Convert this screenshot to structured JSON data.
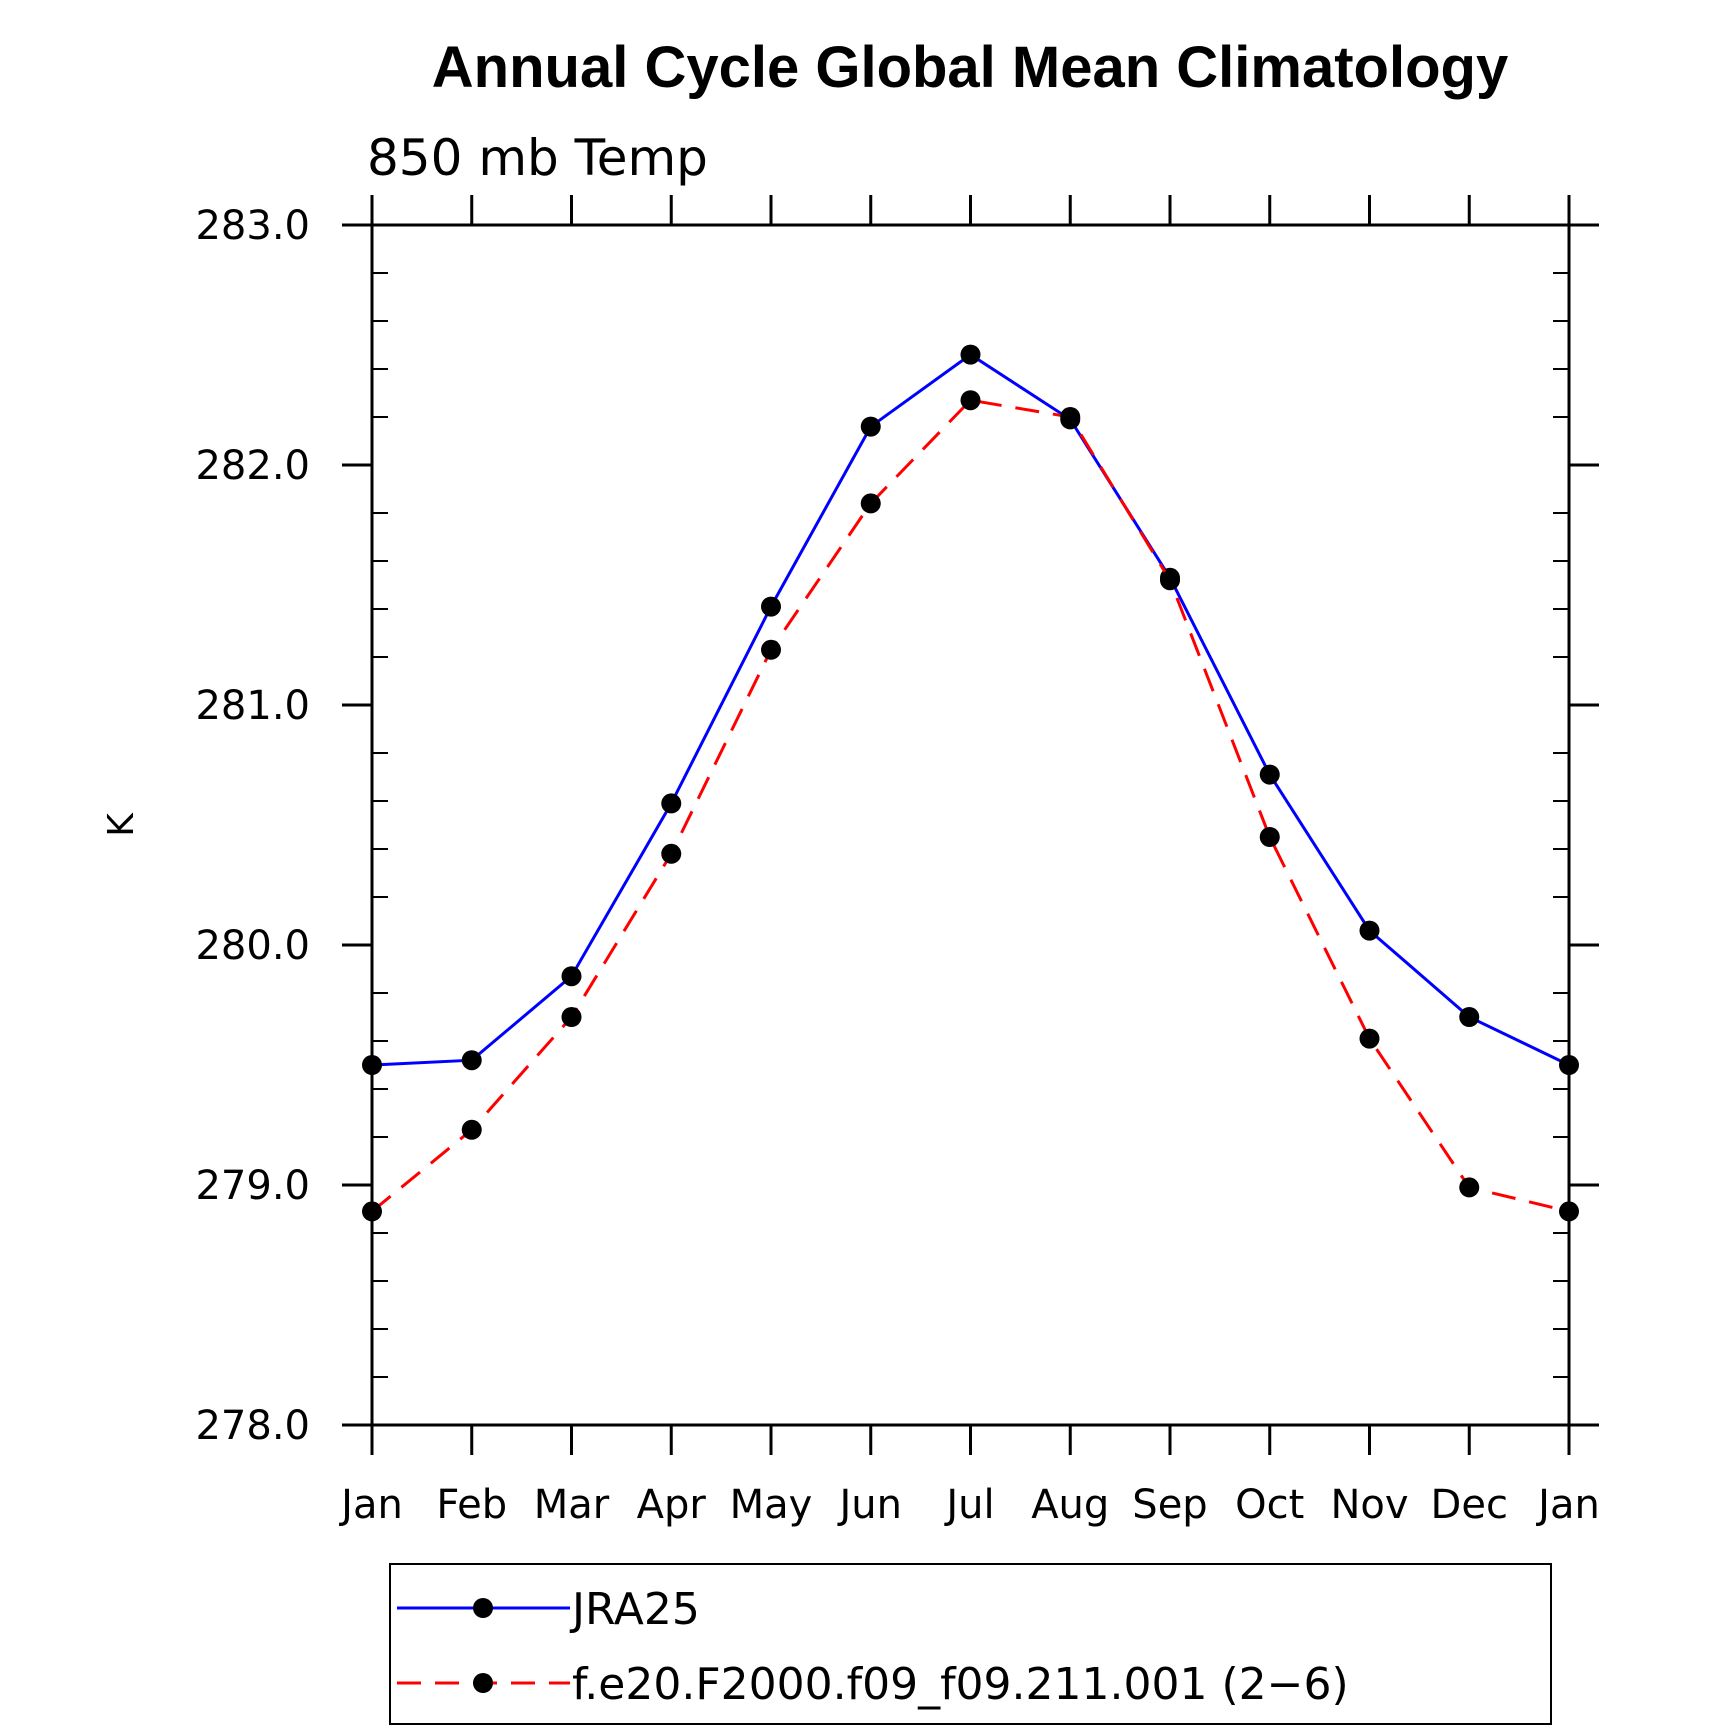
{
  "chart_data": {
    "type": "line",
    "title": "Annual Cycle Global Mean Climatology",
    "subtitle": "850 mb Temp",
    "xlabel": "",
    "ylabel": "K",
    "categories": [
      "Jan",
      "Feb",
      "Mar",
      "Apr",
      "May",
      "Jun",
      "Jul",
      "Aug",
      "Sep",
      "Oct",
      "Nov",
      "Dec",
      "Jan"
    ],
    "ylim": [
      278.0,
      283.0
    ],
    "yticks": [
      "278.0",
      "279.0",
      "280.0",
      "281.0",
      "282.0",
      "283.0"
    ],
    "series": [
      {
        "name": "JRA25",
        "color": "#0000ff",
        "dash": "solid",
        "values": [
          279.5,
          279.52,
          279.87,
          280.59,
          281.41,
          282.16,
          282.46,
          282.19,
          281.53,
          280.71,
          280.06,
          279.7,
          279.5
        ]
      },
      {
        "name": "f.e20.F2000.f09_f09.211.001 (2−6)",
        "color": "#ff0000",
        "dash": "dashed",
        "values": [
          278.89,
          279.23,
          279.7,
          280.38,
          281.23,
          281.84,
          282.27,
          282.2,
          281.52,
          280.45,
          279.61,
          278.99,
          278.89
        ]
      }
    ],
    "legend_position": "bottom",
    "grid": false
  }
}
